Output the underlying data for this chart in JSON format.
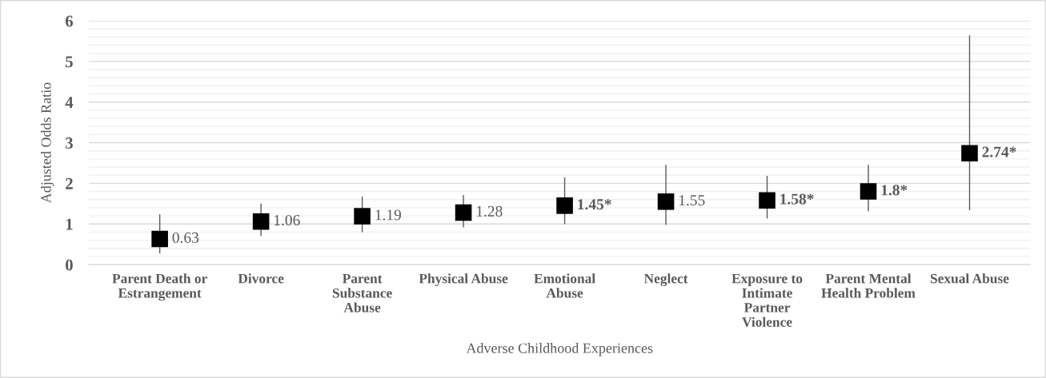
{
  "chart_data": {
    "type": "scatter",
    "xlabel": "Adverse Childhood Experiences",
    "ylabel": "Adjusted Odds Ratio",
    "categories": [
      "Parent Death or\nEstrangement",
      "Divorce",
      "Parent\nSubstance\nAbuse",
      "Physical Abuse",
      "Emotional\nAbuse",
      "Neglect",
      "Exposure to\nIntimate\nPartner\nViolence",
      "Parent Mental\nHealth Problem",
      "Sexual Abuse"
    ],
    "values": [
      0.63,
      1.06,
      1.19,
      1.28,
      1.45,
      1.55,
      1.58,
      1.8,
      2.74
    ],
    "errors": [
      [
        0.29,
        1.22
      ],
      [
        0.72,
        1.49
      ],
      [
        0.81,
        1.66
      ],
      [
        0.93,
        1.7
      ],
      [
        1.01,
        2.13
      ],
      [
        0.99,
        2.44
      ],
      [
        1.15,
        2.17
      ],
      [
        1.33,
        2.44
      ],
      [
        1.35,
        5.63
      ]
    ],
    "value_labels": [
      "0.63",
      "1.06",
      "1.19",
      "1.28",
      "1.45*",
      "1.55",
      "1.58*",
      "1.8*",
      "2.74*"
    ],
    "color": "#000000",
    "marker": "square",
    "ylim": [
      0,
      6
    ],
    "yticks": [
      0,
      1,
      2,
      3,
      4,
      5,
      6
    ],
    "grid": "y",
    "legend": false
  }
}
